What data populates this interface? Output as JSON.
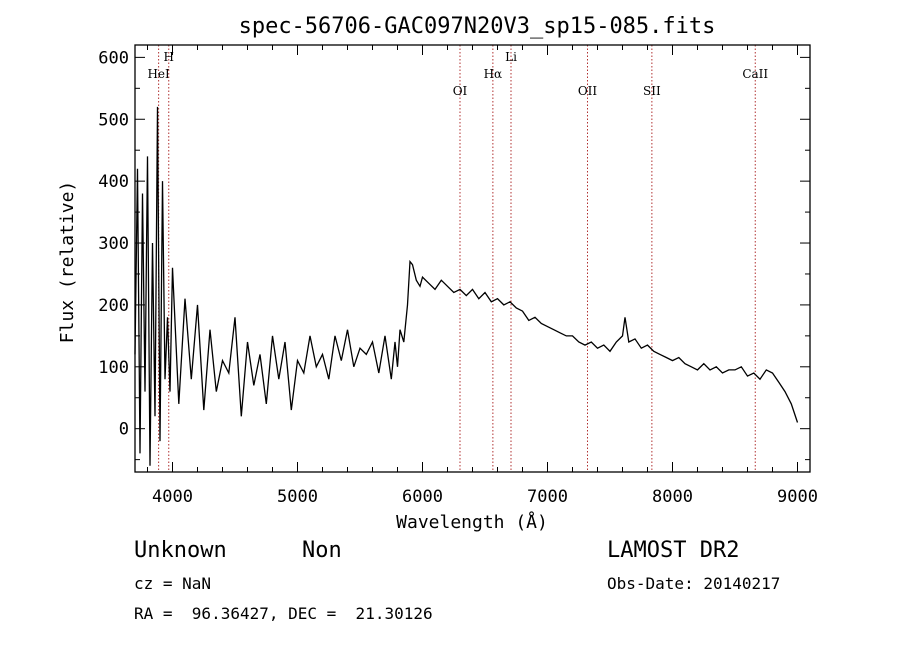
{
  "chart_data": {
    "type": "line",
    "title": "spec-56706-GAC097N20V3_sp15-085.fits",
    "xlabel": "Wavelength (Å)",
    "ylabel": "Flux (relative)",
    "xlim": [
      3700,
      9100
    ],
    "ylim": [
      -70,
      620
    ],
    "xticks": [
      4000,
      5000,
      6000,
      7000,
      8000,
      9000
    ],
    "yticks": [
      0,
      100,
      200,
      300,
      400,
      500,
      600
    ],
    "grid": false,
    "lines": [
      {
        "label": "HeI",
        "wavelength": 3889
      },
      {
        "label": "H",
        "wavelength": 3970
      },
      {
        "label": "OI",
        "wavelength": 6300
      },
      {
        "label": "Hα",
        "wavelength": 6563
      },
      {
        "label": "Li",
        "wavelength": 6708
      },
      {
        "label": "OII",
        "wavelength": 7320
      },
      {
        "label": "SII",
        "wavelength": 7835
      },
      {
        "label": "CaII",
        "wavelength": 8662
      }
    ],
    "series": [
      {
        "x": [
          3700,
          3720,
          3740,
          3760,
          3780,
          3800,
          3820,
          3840,
          3860,
          3880,
          3900,
          3920,
          3940,
          3960,
          3980,
          4000,
          4050,
          4100,
          4150,
          4200,
          4250,
          4300,
          4350,
          4400,
          4450,
          4500,
          4550,
          4600,
          4650,
          4700,
          4750,
          4800,
          4850,
          4900,
          4950,
          5000,
          5050,
          5100,
          5150,
          5200,
          5250,
          5300,
          5350,
          5400,
          5450,
          5500,
          5550,
          5600,
          5650,
          5700,
          5750,
          5780,
          5800,
          5820,
          5850,
          5880,
          5900,
          5920,
          5950,
          5980,
          6000,
          6050,
          6100,
          6150,
          6200,
          6250,
          6300,
          6350,
          6400,
          6450,
          6500,
          6550,
          6600,
          6650,
          6700,
          6750,
          6800,
          6850,
          6900,
          6950,
          7000,
          7050,
          7100,
          7150,
          7200,
          7250,
          7300,
          7350,
          7400,
          7450,
          7500,
          7550,
          7600,
          7620,
          7650,
          7700,
          7750,
          7800,
          7850,
          7900,
          7950,
          8000,
          8050,
          8100,
          8150,
          8200,
          8250,
          8300,
          8350,
          8400,
          8450,
          8500,
          8550,
          8600,
          8650,
          8700,
          8750,
          8800,
          8850,
          8900,
          8950,
          9000
        ],
        "y": [
          120,
          420,
          -40,
          380,
          60,
          440,
          -60,
          300,
          20,
          520,
          -20,
          400,
          80,
          180,
          60,
          260,
          40,
          210,
          80,
          200,
          30,
          160,
          60,
          110,
          90,
          180,
          20,
          140,
          70,
          120,
          40,
          150,
          80,
          140,
          30,
          110,
          90,
          150,
          100,
          120,
          80,
          150,
          110,
          160,
          100,
          130,
          120,
          140,
          90,
          150,
          80,
          140,
          100,
          160,
          140,
          200,
          270,
          265,
          240,
          230,
          245,
          235,
          225,
          240,
          230,
          220,
          225,
          215,
          225,
          210,
          220,
          205,
          210,
          200,
          205,
          195,
          190,
          175,
          180,
          170,
          165,
          160,
          155,
          150,
          150,
          140,
          135,
          140,
          130,
          135,
          125,
          140,
          150,
          180,
          140,
          145,
          130,
          135,
          125,
          120,
          115,
          110,
          115,
          105,
          100,
          95,
          105,
          95,
          100,
          90,
          95,
          95,
          100,
          85,
          90,
          80,
          95,
          90,
          75,
          60,
          40,
          10
        ]
      }
    ]
  },
  "info": {
    "object_class": "Unknown",
    "subclass": "Non",
    "survey": "LAMOST DR2",
    "cz": "cz = NaN",
    "obs_date": "Obs-Date: 20140217",
    "coords": "RA =  96.36427, DEC =  21.30126"
  }
}
